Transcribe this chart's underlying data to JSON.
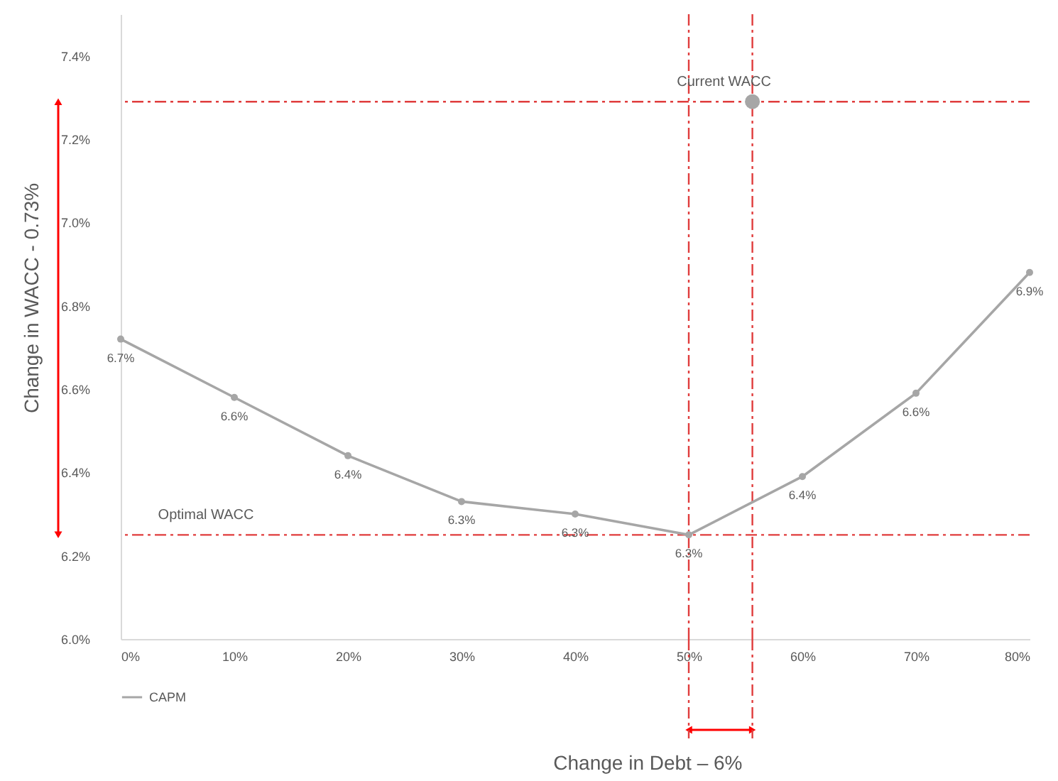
{
  "chart_data": {
    "type": "line",
    "xlim": [
      0,
      80
    ],
    "ylim": [
      6.0,
      7.5
    ],
    "xticks": [
      {
        "value": 0,
        "label": "0%"
      },
      {
        "value": 10,
        "label": "10%"
      },
      {
        "value": 20,
        "label": "20%"
      },
      {
        "value": 30,
        "label": "30%"
      },
      {
        "value": 40,
        "label": "40%"
      },
      {
        "value": 50,
        "label": "50%"
      },
      {
        "value": 60,
        "label": "60%"
      },
      {
        "value": 70,
        "label": "70%"
      },
      {
        "value": 80,
        "label": "80%"
      }
    ],
    "yticks": [
      {
        "value": 6.0,
        "label": "6.0%"
      },
      {
        "value": 6.2,
        "label": "6.2%"
      },
      {
        "value": 6.4,
        "label": "6.4%"
      },
      {
        "value": 6.6,
        "label": "6.6%"
      },
      {
        "value": 6.8,
        "label": "6.8%"
      },
      {
        "value": 7.0,
        "label": "7.0%"
      },
      {
        "value": 7.2,
        "label": "7.2%"
      },
      {
        "value": 7.4,
        "label": "7.4%"
      }
    ],
    "series": [
      {
        "name": "CAPM",
        "color": "#a6a6a6",
        "marker": "circle",
        "x": [
          0,
          10,
          20,
          30,
          40,
          50,
          60,
          70,
          80
        ],
        "values": [
          6.72,
          6.58,
          6.44,
          6.33,
          6.3,
          6.25,
          6.39,
          6.59,
          6.88
        ],
        "value_labels": [
          "6.7%",
          "6.6%",
          "6.4%",
          "6.3%",
          "6.3%",
          "6.3%",
          "6.4%",
          "6.6%",
          "6.9%"
        ]
      },
      {
        "type": "scatter",
        "color": "#a6a6a6",
        "marker": "circle",
        "x": [
          55.6
        ],
        "values": [
          7.29
        ]
      }
    ],
    "ref_lines": [
      {
        "axis": "y",
        "value": 7.29,
        "color": "#e03c3c",
        "line_style": "dashed"
      },
      {
        "axis": "y",
        "value": 6.25,
        "color": "#e03c3c",
        "line_style": "dashed"
      },
      {
        "axis": "x",
        "value": 50,
        "color": "#e03c3c",
        "line_style": "dashed"
      },
      {
        "axis": "x",
        "value": 55.6,
        "color": "#e03c3c",
        "line_style": "dashed"
      }
    ],
    "annotations": [
      {
        "text": "Current WACC",
        "x": 55.6,
        "y": 7.29
      },
      {
        "text": "Optimal WACC",
        "x": 10,
        "y": 6.25
      },
      "Change in WACC - 0.73%",
      "Change in Debt – 6%"
    ],
    "legend": "bottom",
    "grid": false
  }
}
